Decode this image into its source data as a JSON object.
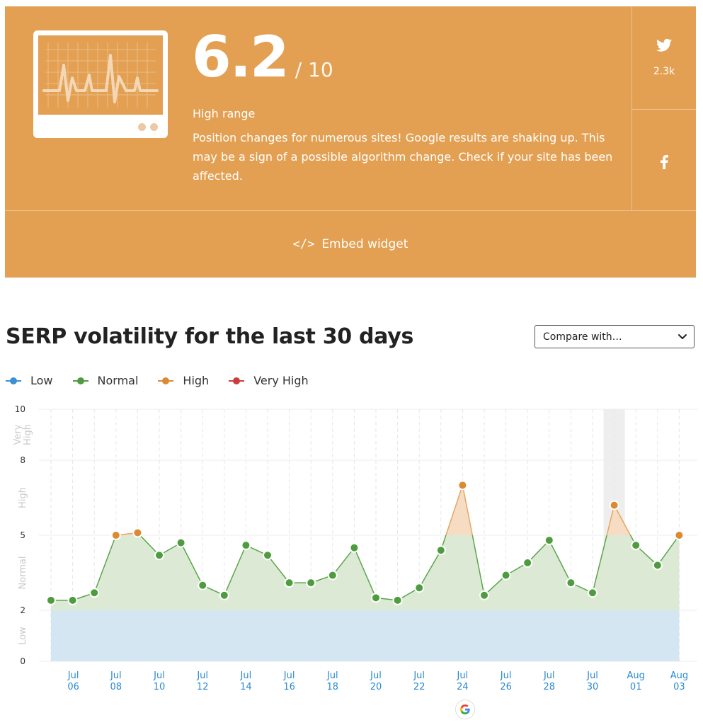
{
  "score": {
    "value": "6.2",
    "max": "/ 10",
    "range_label": "High range",
    "description": "Position changes for numerous sites! Google results are shaking up. This may be a sign of a possible algorithm change. Check if your site has been affected.",
    "bg_color": "#e3a053"
  },
  "share": {
    "twitter_count": "2.3k",
    "twitter_icon": "twitter-bird-icon",
    "facebook_icon": "facebook-icon"
  },
  "embed": {
    "label": "Embed widget",
    "icon": "</>"
  },
  "section": {
    "title": "SERP volatility for the last 30 days",
    "compare_label": "Compare with…"
  },
  "legend": [
    {
      "label": "Low",
      "color": "#3b8fd4"
    },
    {
      "label": "Normal",
      "color": "#4e9c3f"
    },
    {
      "label": "High",
      "color": "#dc8a32"
    },
    {
      "label": "Very High",
      "color": "#cc3d3a"
    }
  ],
  "chart_data": {
    "type": "line",
    "y_ticks": [
      "0",
      "2",
      "5",
      "8",
      "10"
    ],
    "ylim": [
      0,
      10
    ],
    "zones": [
      {
        "label": "Low",
        "from": 0,
        "to": 2
      },
      {
        "label": "Normal",
        "from": 2,
        "to": 5
      },
      {
        "label": "High",
        "from": 5,
        "to": 8
      },
      {
        "label": "Very High",
        "from": 8,
        "to": 10
      }
    ],
    "x_ticks": [
      {
        "month": "Jul",
        "day": "06"
      },
      {
        "month": "Jul",
        "day": "08"
      },
      {
        "month": "Jul",
        "day": "10"
      },
      {
        "month": "Jul",
        "day": "12"
      },
      {
        "month": "Jul",
        "day": "14"
      },
      {
        "month": "Jul",
        "day": "16"
      },
      {
        "month": "Jul",
        "day": "18"
      },
      {
        "month": "Jul",
        "day": "20"
      },
      {
        "month": "Jul",
        "day": "22"
      },
      {
        "month": "Jul",
        "day": "24"
      },
      {
        "month": "Jul",
        "day": "26"
      },
      {
        "month": "Jul",
        "day": "28"
      },
      {
        "month": "Jul",
        "day": "30"
      },
      {
        "month": "Aug",
        "day": "01"
      },
      {
        "month": "Aug",
        "day": "03"
      }
    ],
    "x": [
      "Jul 05",
      "Jul 06",
      "Jul 07",
      "Jul 08",
      "Jul 09",
      "Jul 10",
      "Jul 11",
      "Jul 12",
      "Jul 13",
      "Jul 14",
      "Jul 15",
      "Jul 16",
      "Jul 17",
      "Jul 18",
      "Jul 19",
      "Jul 20",
      "Jul 21",
      "Jul 22",
      "Jul 23",
      "Jul 24",
      "Jul 25",
      "Jul 26",
      "Jul 27",
      "Jul 28",
      "Jul 29",
      "Jul 30",
      "Jul 31",
      "Aug 01",
      "Aug 02",
      "Aug 03"
    ],
    "values": [
      2.4,
      2.4,
      2.7,
      5.0,
      5.1,
      4.2,
      4.7,
      3.0,
      2.6,
      4.6,
      4.2,
      3.1,
      3.1,
      3.4,
      4.5,
      2.5,
      2.4,
      2.9,
      4.4,
      7.0,
      2.6,
      3.4,
      3.9,
      4.8,
      3.1,
      2.7,
      6.2,
      4.6,
      3.8,
      5.0
    ],
    "highlighted": "Jul 31",
    "annotation_icon": "google-g-icon",
    "annotation_date": "Jul 24"
  }
}
